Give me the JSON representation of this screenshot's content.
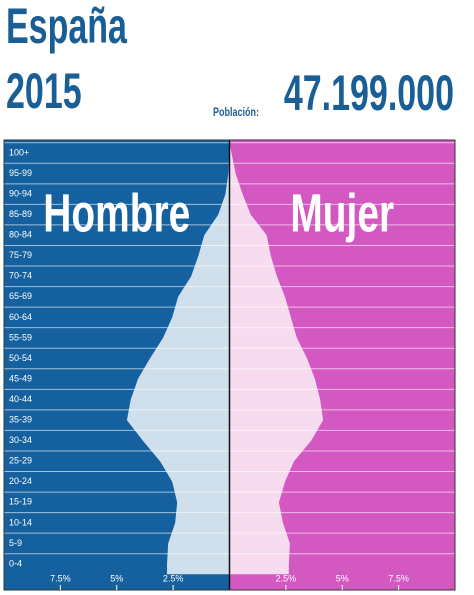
{
  "header": {
    "title": "España",
    "year": "2015",
    "population_label": "Población:",
    "population": "47.199.000"
  },
  "chart_data": {
    "type": "pyramid",
    "categories": [
      "0-4",
      "5-9",
      "10-14",
      "15-19",
      "20-24",
      "25-29",
      "30-34",
      "35-39",
      "40-44",
      "45-49",
      "50-54",
      "55-59",
      "60-64",
      "65-69",
      "70-74",
      "75-79",
      "80-84",
      "85-89",
      "90-94",
      "95-99",
      "100+"
    ],
    "series": [
      {
        "name": "Hombre",
        "color": "#cfe0ec",
        "background": "#1561a0",
        "values": [
          2.77,
          2.72,
          2.41,
          2.32,
          2.54,
          3.08,
          3.84,
          4.55,
          4.38,
          4.06,
          3.53,
          2.95,
          2.54,
          2.28,
          1.7,
          1.38,
          1.12,
          0.5,
          0.18,
          0.05,
          0.01
        ]
      },
      {
        "name": "Mujer",
        "color": "#f7dcef",
        "background": "#d458c2",
        "values": [
          2.63,
          2.68,
          2.37,
          2.19,
          2.46,
          2.86,
          3.62,
          4.15,
          4.02,
          3.79,
          3.44,
          2.99,
          2.72,
          2.46,
          2.1,
          1.83,
          1.65,
          0.94,
          0.58,
          0.27,
          0.09
        ]
      }
    ],
    "xlim": [
      0,
      10
    ],
    "xticks": [
      {
        "value": 2.5,
        "label": "2.5%"
      },
      {
        "value": 5,
        "label": "5%"
      },
      {
        "value": 7.5,
        "label": "7.5%"
      }
    ]
  }
}
